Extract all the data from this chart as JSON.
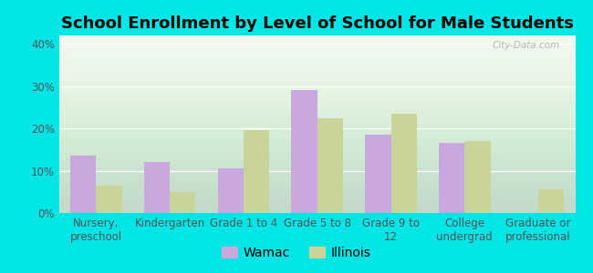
{
  "title": "School Enrollment by Level of School for Male Students",
  "categories": [
    "Nursery,\npreschool",
    "Kindergarten",
    "Grade 1 to 4",
    "Grade 5 to 8",
    "Grade 9 to\n12",
    "College\nundergrad",
    "Graduate or\nprofessional"
  ],
  "wamac_values": [
    13.5,
    12.0,
    10.5,
    29.0,
    18.5,
    16.5,
    0.0
  ],
  "illinois_values": [
    6.5,
    5.0,
    19.5,
    22.5,
    23.5,
    17.0,
    5.5
  ],
  "wamac_color": "#c9a8e0",
  "illinois_color": "#c8d49a",
  "bar_width": 0.35,
  "ylim": [
    0,
    42
  ],
  "yticks": [
    0,
    10,
    20,
    30,
    40
  ],
  "ytick_labels": [
    "0%",
    "10%",
    "20%",
    "30%",
    "40%"
  ],
  "background_outer": "#00e5e5",
  "background_inner": "#eef5e8",
  "legend_labels": [
    "Wamac",
    "Illinois"
  ],
  "watermark": "City-Data.com",
  "title_fontsize": 13,
  "legend_fontsize": 10,
  "tick_fontsize": 8.5
}
